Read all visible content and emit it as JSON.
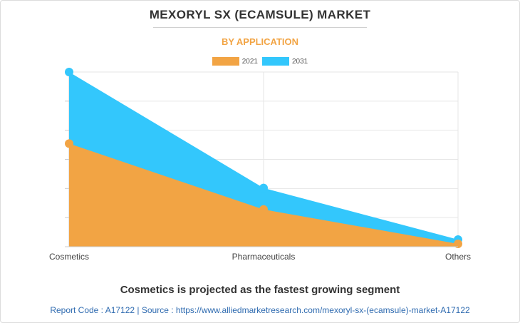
{
  "title": "MEXORYL SX (ECAMSULE) MARKET",
  "subtitle": "BY APPLICATION",
  "headline": "Cosmetics is projected as the fastest growing segment",
  "footer": "Report Code : A17122  |  Source : https://www.alliedmarketresearch.com/mexoryl-sx-(ecamsule)-market-A17122",
  "colors": {
    "series_2021": "#f2a444",
    "series_2031": "#33c7fc",
    "subtitle": "#f2a444",
    "footer": "#2f6bb0",
    "grid": "#e6e6e6"
  },
  "chart_data": {
    "type": "area",
    "categories": [
      "Cosmetics",
      "Pharmaceuticals",
      "Others"
    ],
    "series": [
      {
        "name": "2021",
        "values": [
          36.0,
          13.0,
          1.0
        ]
      },
      {
        "name": "2031",
        "values": [
          61.0,
          20.5,
          2.5
        ]
      }
    ],
    "ylim": [
      0,
      61
    ],
    "y_tick_labels_shown": false,
    "grid": true,
    "legend_position": "top-center"
  }
}
